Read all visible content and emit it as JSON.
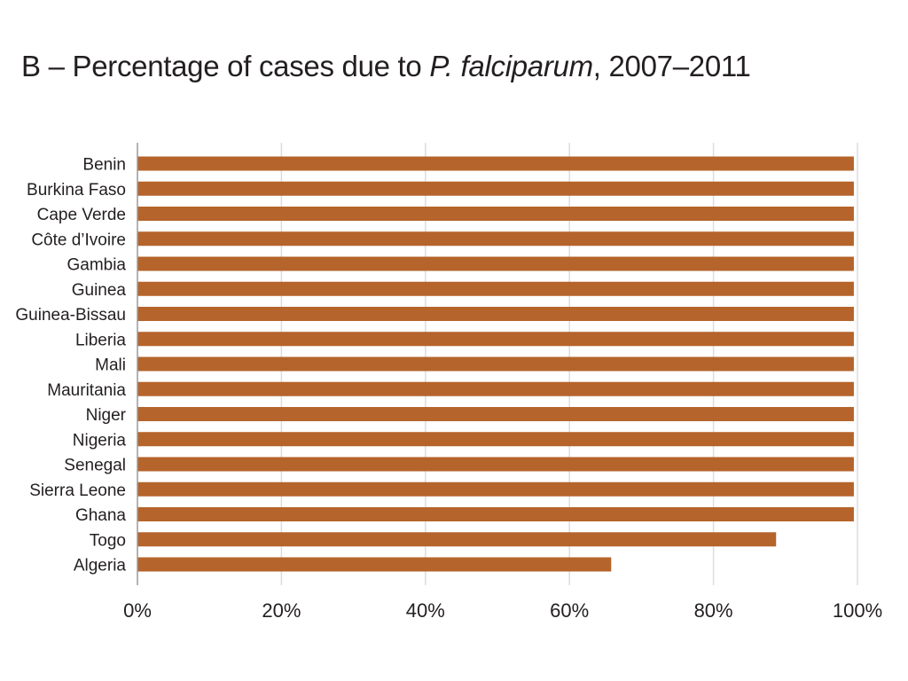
{
  "chart_data": {
    "type": "bar",
    "orientation": "horizontal",
    "title": "B – Percentage of cases due to P. falciparum, 2007–2011",
    "title_parts": {
      "prefix": "B – Percentage of cases due to ",
      "italic": "P. falciparum",
      "suffix": ", 2007–2011"
    },
    "categories": [
      "Benin",
      "Burkina Faso",
      "Cape Verde",
      "Côte d’Ivoire",
      "Gambia",
      "Guinea",
      "Guinea-Bissau",
      "Liberia",
      "Mali",
      "Mauritania",
      "Niger",
      "Nigeria",
      "Senegal",
      "Sierra Leone",
      "Ghana",
      "Togo",
      "Algeria"
    ],
    "values": [
      99.5,
      99.5,
      99.5,
      99.5,
      99.5,
      99.5,
      99.5,
      99.5,
      99.5,
      99.5,
      99.5,
      99.5,
      99.5,
      99.5,
      99.5,
      88.7,
      65.8
    ],
    "xlim": [
      0,
      100
    ],
    "xticks": [
      0,
      20,
      40,
      60,
      80,
      100
    ],
    "xtick_labels": [
      "0%",
      "20%",
      "40%",
      "60%",
      "80%",
      "100%"
    ],
    "xlabel": "",
    "ylabel": "",
    "grid": "vertical",
    "bar_color": "#b5642b",
    "grid_color": "#dcdcdc",
    "axis_color": "#9a9a9a"
  }
}
